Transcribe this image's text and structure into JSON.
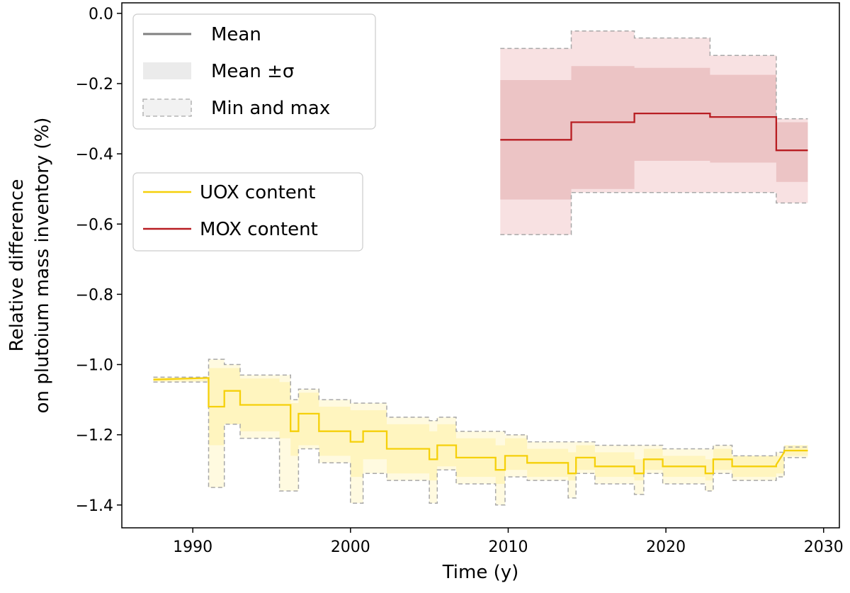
{
  "chart_data": {
    "type": "line",
    "title": "",
    "xlabel": "Time (y)",
    "ylabel_lines": [
      "Relative difference",
      "on plutoium mass inventory (%)"
    ],
    "xlim": [
      1985.5,
      2031
    ],
    "ylim": [
      -1.465,
      0.03
    ],
    "x_ticks": [
      1990,
      2000,
      2010,
      2020,
      2030
    ],
    "y_ticks": [
      0.0,
      -0.2,
      -0.4,
      -0.6,
      -0.8,
      -1.0,
      -1.2,
      -1.4
    ],
    "y_tick_labels": [
      "0.0",
      "−0.2",
      "−0.4",
      "−0.6",
      "−0.8",
      "−1.0",
      "−1.2",
      "−1.4"
    ],
    "grid": false,
    "legend_stats": {
      "placement": "top-left",
      "entries": [
        {
          "label": "Mean",
          "style": "line",
          "color": "#808080"
        },
        {
          "label": "Mean ±σ",
          "style": "band",
          "color": "#ebebeb"
        },
        {
          "label": "Min and max",
          "style": "dashed-band",
          "color": "#f2f2f2"
        }
      ]
    },
    "legend_series": {
      "placement": "upper-left",
      "entries": [
        {
          "label": "UOX content",
          "color": "#f5d00a"
        },
        {
          "label": "MOX content",
          "color": "#b81d22"
        }
      ]
    },
    "series": [
      {
        "name": "UOX content",
        "color": "#f5d00a",
        "band_color": "#fff5bf",
        "minmax_color": "#fffae0",
        "steps": [
          {
            "x0": 1987.5,
            "x1": 1991.0,
            "mean": -1.043,
            "lo": -1.048,
            "hi": -1.038,
            "min": -1.05,
            "max": -1.036,
            "slope_to": -1.038
          },
          {
            "x0": 1991.0,
            "x1": 1992.0,
            "mean": -1.12,
            "lo": -1.23,
            "hi": -1.01,
            "min": -1.35,
            "max": -0.985
          },
          {
            "x0": 1992.0,
            "x1": 1993.0,
            "mean": -1.075,
            "lo": -1.17,
            "hi": -1.01,
            "min": -1.17,
            "max": -1.0
          },
          {
            "x0": 1993.0,
            "x1": 1995.5,
            "mean": -1.115,
            "lo": -1.19,
            "hi": -1.04,
            "min": -1.21,
            "max": -1.03
          },
          {
            "x0": 1995.5,
            "x1": 1996.2,
            "mean": -1.115,
            "lo": -1.21,
            "hi": -1.05,
            "min": -1.36,
            "max": -1.03
          },
          {
            "x0": 1996.2,
            "x1": 1996.7,
            "mean": -1.19,
            "lo": -1.26,
            "hi": -1.11,
            "min": -1.36,
            "max": -1.1
          },
          {
            "x0": 1996.7,
            "x1": 1998.0,
            "mean": -1.14,
            "lo": -1.23,
            "hi": -1.08,
            "min": -1.24,
            "max": -1.07
          },
          {
            "x0": 1998.0,
            "x1": 2000.0,
            "mean": -1.19,
            "lo": -1.26,
            "hi": -1.12,
            "min": -1.28,
            "max": -1.1
          },
          {
            "x0": 2000.0,
            "x1": 2000.8,
            "mean": -1.22,
            "lo": -1.32,
            "hi": -1.13,
            "min": -1.395,
            "max": -1.11
          },
          {
            "x0": 2000.8,
            "x1": 2002.3,
            "mean": -1.19,
            "lo": -1.27,
            "hi": -1.13,
            "min": -1.31,
            "max": -1.11
          },
          {
            "x0": 2002.3,
            "x1": 2005.0,
            "mean": -1.24,
            "lo": -1.31,
            "hi": -1.17,
            "min": -1.33,
            "max": -1.15
          },
          {
            "x0": 2005.0,
            "x1": 2005.5,
            "mean": -1.27,
            "lo": -1.33,
            "hi": -1.19,
            "min": -1.395,
            "max": -1.16
          },
          {
            "x0": 2005.5,
            "x1": 2006.7,
            "mean": -1.23,
            "lo": -1.29,
            "hi": -1.17,
            "min": -1.3,
            "max": -1.15
          },
          {
            "x0": 2006.7,
            "x1": 2009.2,
            "mean": -1.265,
            "lo": -1.32,
            "hi": -1.21,
            "min": -1.34,
            "max": -1.19
          },
          {
            "x0": 2009.2,
            "x1": 2009.8,
            "mean": -1.3,
            "lo": -1.34,
            "hi": -1.23,
            "min": -1.4,
            "max": -1.19
          },
          {
            "x0": 2009.8,
            "x1": 2011.2,
            "mean": -1.26,
            "lo": -1.3,
            "hi": -1.21,
            "min": -1.32,
            "max": -1.2
          },
          {
            "x0": 2011.2,
            "x1": 2013.8,
            "mean": -1.28,
            "lo": -1.32,
            "hi": -1.24,
            "min": -1.33,
            "max": -1.22
          },
          {
            "x0": 2013.8,
            "x1": 2014.3,
            "mean": -1.31,
            "lo": -1.33,
            "hi": -1.25,
            "min": -1.38,
            "max": -1.22
          },
          {
            "x0": 2014.3,
            "x1": 2015.5,
            "mean": -1.265,
            "lo": -1.3,
            "hi": -1.23,
            "min": -1.31,
            "max": -1.22
          },
          {
            "x0": 2015.5,
            "x1": 2018.0,
            "mean": -1.29,
            "lo": -1.32,
            "hi": -1.25,
            "min": -1.34,
            "max": -1.23
          },
          {
            "x0": 2018.0,
            "x1": 2018.6,
            "mean": -1.31,
            "lo": -1.33,
            "hi": -1.27,
            "min": -1.37,
            "max": -1.23
          },
          {
            "x0": 2018.6,
            "x1": 2019.8,
            "mean": -1.27,
            "lo": -1.3,
            "hi": -1.24,
            "min": -1.31,
            "max": -1.23
          },
          {
            "x0": 2019.8,
            "x1": 2022.5,
            "mean": -1.29,
            "lo": -1.32,
            "hi": -1.26,
            "min": -1.34,
            "max": -1.24
          },
          {
            "x0": 2022.5,
            "x1": 2023.0,
            "mean": -1.31,
            "lo": -1.33,
            "hi": -1.27,
            "min": -1.36,
            "max": -1.24
          },
          {
            "x0": 2023.0,
            "x1": 2024.2,
            "mean": -1.27,
            "lo": -1.3,
            "hi": -1.24,
            "min": -1.31,
            "max": -1.23
          },
          {
            "x0": 2024.2,
            "x1": 2027.0,
            "mean": -1.29,
            "lo": -1.32,
            "hi": -1.26,
            "min": -1.33,
            "max": -1.26
          },
          {
            "x0": 2027.0,
            "x1": 2027.5,
            "mean": -1.285,
            "lo": -1.31,
            "hi": -1.26,
            "min": -1.32,
            "max": -1.25,
            "slope_to": -1.25
          },
          {
            "x0": 2027.5,
            "x1": 2029.0,
            "mean": -1.245,
            "lo": -1.26,
            "hi": -1.23,
            "min": -1.265,
            "max": -1.235
          }
        ]
      },
      {
        "name": "MOX content",
        "color": "#b81d22",
        "band_color": "#ecc4c5",
        "minmax_color": "#f8e1e2",
        "steps": [
          {
            "x0": 2009.5,
            "x1": 2014.0,
            "mean": -0.36,
            "lo": -0.53,
            "hi": -0.19,
            "min": -0.63,
            "max": -0.1
          },
          {
            "x0": 2014.0,
            "x1": 2018.0,
            "mean": -0.31,
            "lo": -0.5,
            "hi": -0.15,
            "min": -0.51,
            "max": -0.05
          },
          {
            "x0": 2018.0,
            "x1": 2022.8,
            "mean": -0.285,
            "lo": -0.42,
            "hi": -0.155,
            "min": -0.51,
            "max": -0.07
          },
          {
            "x0": 2022.8,
            "x1": 2027.0,
            "mean": -0.295,
            "lo": -0.425,
            "hi": -0.175,
            "min": -0.51,
            "max": -0.12
          },
          {
            "x0": 2027.0,
            "x1": 2029.0,
            "mean": -0.39,
            "lo": -0.48,
            "hi": -0.31,
            "min": -0.54,
            "max": -0.3
          }
        ]
      }
    ]
  }
}
